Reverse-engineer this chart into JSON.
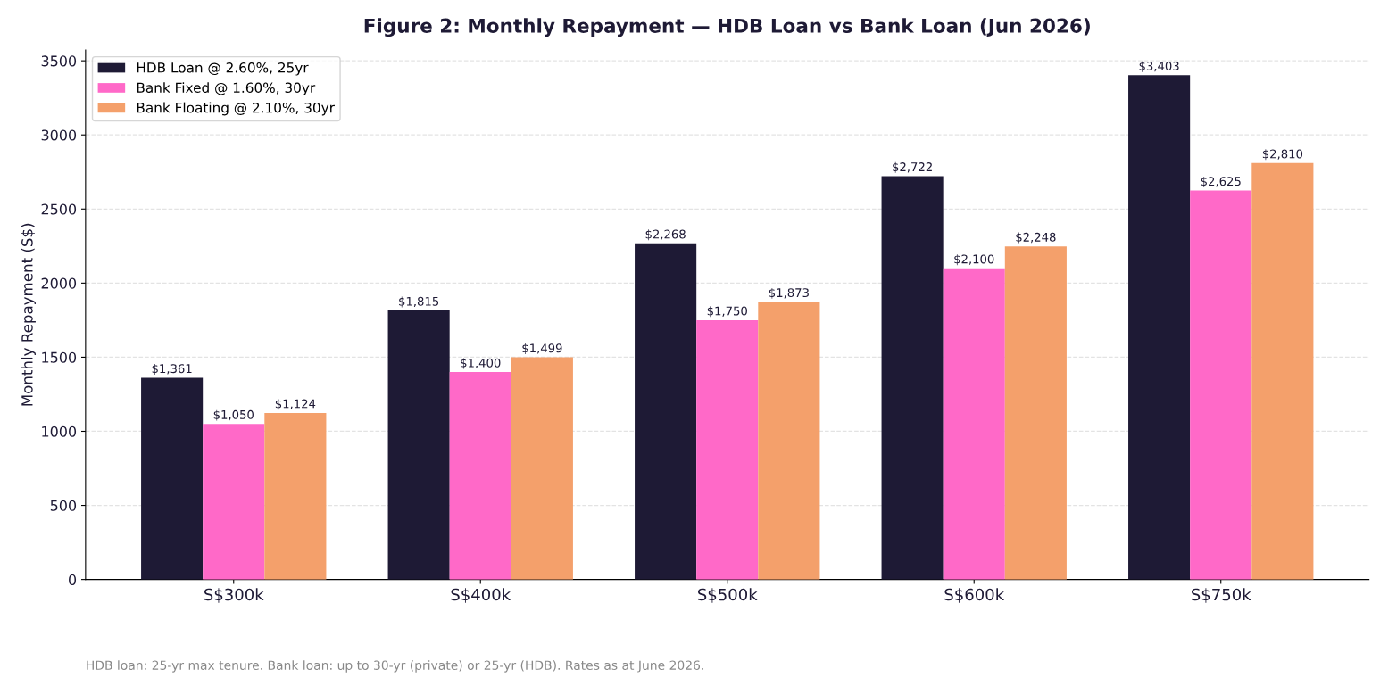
{
  "chart_data": {
    "type": "bar",
    "title": "Figure 2: Monthly Repayment — HDB Loan vs Bank Loan (Jun 2026)",
    "ylabel": "Monthly Repayment (S$)",
    "categories": [
      "S$300k",
      "S$400k",
      "S$500k",
      "S$600k",
      "S$750k"
    ],
    "series": [
      {
        "name": "HDB Loan @ 2.60%, 25yr",
        "color": "#1e1a35",
        "values": [
          1361,
          1815,
          2268,
          2722,
          3403
        ],
        "value_labels": [
          "$1,361",
          "$1,815",
          "$2,268",
          "$2,722",
          "$3,403"
        ]
      },
      {
        "name": "Bank Fixed @ 1.60%, 30yr",
        "color": "#ff69c8",
        "values": [
          1050,
          1400,
          1750,
          2100,
          2625
        ],
        "value_labels": [
          "$1,050",
          "$1,400",
          "$1,750",
          "$2,100",
          "$2,625"
        ]
      },
      {
        "name": "Bank Floating @ 2.10%, 30yr",
        "color": "#f4a06b",
        "values": [
          1124,
          1499,
          1873,
          2248,
          2810
        ],
        "value_labels": [
          "$1,124",
          "$1,499",
          "$1,873",
          "$2,248",
          "$2,810"
        ]
      }
    ],
    "ylim": [
      0,
      3573
    ],
    "yticks": [
      0,
      500,
      1000,
      1500,
      2000,
      2500,
      3000,
      3500
    ],
    "grid": "y",
    "legend": "top left",
    "annotations": [
      "HDB loan: 25-yr max tenure. Bank loan: up to 30-yr (private) or 25-yr (HDB). Rates as at June 2026."
    ]
  }
}
